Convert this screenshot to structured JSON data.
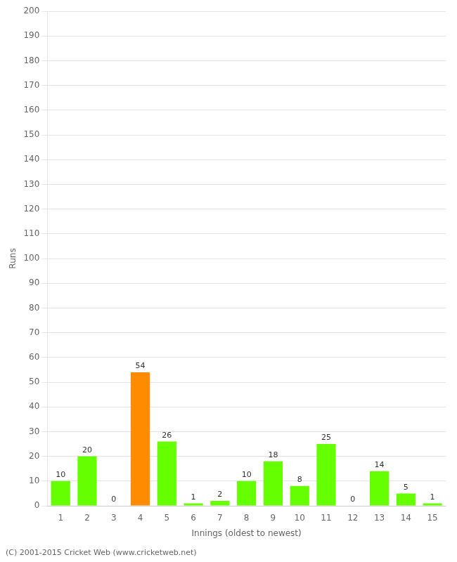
{
  "chart_data": {
    "type": "bar",
    "categories": [
      "1",
      "2",
      "3",
      "4",
      "5",
      "6",
      "7",
      "8",
      "9",
      "10",
      "11",
      "12",
      "13",
      "14",
      "15"
    ],
    "values": [
      10,
      20,
      0,
      54,
      26,
      1,
      2,
      10,
      18,
      8,
      25,
      0,
      14,
      5,
      1
    ],
    "colors": [
      "#66ff00",
      "#66ff00",
      "#66ff00",
      "#ff8c00",
      "#66ff00",
      "#66ff00",
      "#66ff00",
      "#66ff00",
      "#66ff00",
      "#66ff00",
      "#66ff00",
      "#66ff00",
      "#66ff00",
      "#66ff00",
      "#66ff00"
    ],
    "xlabel": "Innings (oldest to newest)",
    "ylabel": "Runs",
    "ylim": [
      0,
      200
    ],
    "yticks": [
      0,
      10,
      20,
      30,
      40,
      50,
      60,
      70,
      80,
      90,
      100,
      110,
      120,
      130,
      140,
      150,
      160,
      170,
      180,
      190,
      200
    ],
    "grid": true,
    "data_labels": true,
    "annotations": [
      "(C) 2001-2015 Cricket Web (www.cricketweb.net)"
    ]
  }
}
